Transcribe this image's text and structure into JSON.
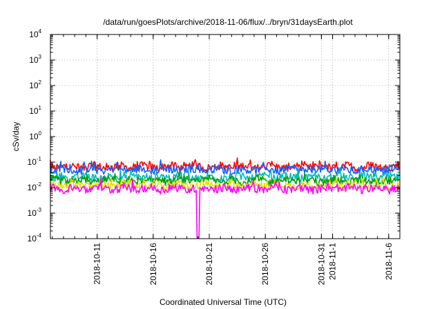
{
  "chart_data": {
    "type": "line",
    "title": "/data/run/goesPlots/archive/2018-11-06/flux/../bryn/31daysEarth.plot",
    "xlabel": "Coordinated Universal Time (UTC)",
    "ylabel": "cSv/day",
    "yscale": "log",
    "ylim": [
      0.0001,
      10000
    ],
    "xlim": [
      "2018-10-06T20:00",
      "2018-11-07T00:00"
    ],
    "grid": true,
    "legend": "none",
    "y_ticks": [
      {
        "base": "10",
        "exp": "-4"
      },
      {
        "base": "10",
        "exp": "-3"
      },
      {
        "base": "10",
        "exp": "-2"
      },
      {
        "base": "10",
        "exp": "-1"
      },
      {
        "base": "10",
        "exp": "0"
      },
      {
        "base": "10",
        "exp": "1"
      },
      {
        "base": "10",
        "exp": "2"
      },
      {
        "base": "10",
        "exp": "3"
      },
      {
        "base": "10",
        "exp": "4"
      }
    ],
    "x_ticks": [
      "2018-10-11",
      "2018-10-16",
      "2018-10-21",
      "2018-10-26",
      "2018-10-31",
      "2018-11-1",
      "2018-11-6"
    ],
    "series": [
      {
        "color": "#ff0000",
        "daily_level": 0.065,
        "x_start": "2018-10-06",
        "x_end": "2018-11-06"
      },
      {
        "color": "#1060ff",
        "daily_level": 0.05,
        "x_start": "2018-10-06",
        "x_end": "2018-11-06"
      },
      {
        "color": "#00b8b8",
        "daily_level": 0.025,
        "x_start": "2018-10-06",
        "x_end": "2018-11-06"
      },
      {
        "color": "#00a000",
        "daily_level": 0.018,
        "x_start": "2018-10-06",
        "x_end": "2018-11-06"
      },
      {
        "color": "#e0e000",
        "daily_level": 0.012,
        "x_start": "2018-10-06",
        "x_end": "2018-11-06"
      },
      {
        "color": "#ff00ff",
        "daily_level": 0.009,
        "x_start": "2018-10-06",
        "x_end": "2018-11-06",
        "minimum": 0.0001,
        "minimum_at": "2018-10-20"
      }
    ]
  }
}
